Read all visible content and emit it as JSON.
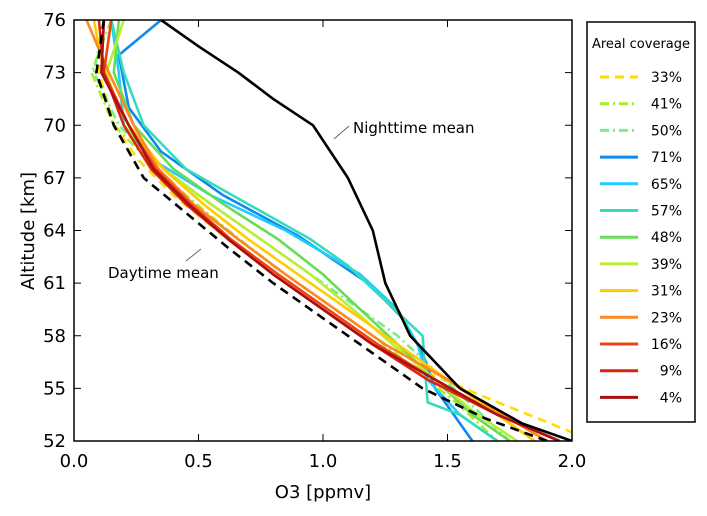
{
  "chart_data": {
    "type": "line",
    "title": "",
    "xlabel": "O3 [ppmv]",
    "ylabel": "Altitude [km]",
    "xlim": [
      0.0,
      2.0
    ],
    "ylim": [
      52,
      76
    ],
    "xticks": [
      "0.0",
      "0.5",
      "1.0",
      "1.5",
      "2.0"
    ],
    "yticks": [
      "52",
      "55",
      "58",
      "61",
      "64",
      "67",
      "70",
      "73",
      "76"
    ],
    "legend": {
      "title": "Areal coverage",
      "position": "right, outside"
    },
    "annotations": [
      {
        "text": "Nighttime mean",
        "points_to": {
          "x": 1.04,
          "y": 69.3
        }
      },
      {
        "text": "Daytime mean",
        "points_to": {
          "x": 0.57,
          "y": 64.8
        }
      }
    ],
    "series": [
      {
        "name": "33%",
        "color": "#ffdd00",
        "dash": "dashed",
        "x": [
          0.12,
          0.1,
          0.16,
          0.26,
          0.4,
          0.6,
          0.8,
          1.0,
          1.2,
          1.4,
          1.65,
          2.0
        ],
        "y": [
          76,
          73,
          70,
          68,
          66,
          63.7,
          61.5,
          59.5,
          57.5,
          56,
          54.5,
          52.5
        ]
      },
      {
        "name": "41%",
        "color": "#aaee22",
        "dash": "dashdot",
        "x": [
          0.15,
          0.07,
          0.16,
          0.3,
          0.45,
          0.62,
          0.8,
          1.0,
          1.2,
          1.38,
          1.55,
          1.7
        ],
        "y": [
          76,
          73,
          70,
          68,
          66,
          64,
          62,
          60,
          58,
          56,
          54,
          52
        ]
      },
      {
        "name": "50%",
        "color": "#77ee88",
        "dash": "dashdot",
        "x": [
          0.12,
          0.08,
          0.18,
          0.32,
          0.5,
          0.7,
          0.9,
          1.1,
          1.3,
          1.45,
          1.6,
          1.75
        ],
        "y": [
          76,
          73,
          70,
          68,
          66,
          64,
          62,
          60,
          58,
          56,
          54,
          52
        ]
      },
      {
        "name": "71%",
        "color": "#1188ee",
        "dash": "solid",
        "x": [
          0.35,
          0.18,
          0.22,
          0.35,
          0.6,
          0.9,
          1.18,
          1.32,
          1.4,
          1.45,
          1.6
        ],
        "y": [
          76,
          74,
          71,
          68.5,
          66,
          63.7,
          61,
          59,
          57,
          55,
          52
        ]
      },
      {
        "name": "65%",
        "color": "#22ccff",
        "dash": "solid",
        "x": [
          0.15,
          0.18,
          0.2,
          0.32,
          0.55,
          0.85,
          1.15,
          1.3,
          1.38,
          1.42,
          1.55,
          1.7
        ],
        "y": [
          76,
          73,
          70,
          68,
          66,
          64,
          61.5,
          59.5,
          57.5,
          55.5,
          53.5,
          52
        ]
      },
      {
        "name": "57%",
        "color": "#33ddbb",
        "dash": "solid",
        "x": [
          0.15,
          0.2,
          0.28,
          0.45,
          0.7,
          0.95,
          1.1,
          1.25,
          1.4,
          1.42,
          1.55,
          1.7
        ],
        "y": [
          76,
          73,
          70,
          67.5,
          65.5,
          63.5,
          62,
          60,
          58,
          54.2,
          53.5,
          52
        ]
      },
      {
        "name": "48%",
        "color": "#66dd55",
        "dash": "solid",
        "x": [
          0.18,
          0.16,
          0.24,
          0.4,
          0.6,
          0.82,
          1.0,
          1.15,
          1.3,
          1.45,
          1.6,
          1.75
        ],
        "y": [
          76,
          73,
          70,
          67.5,
          65.5,
          63.5,
          61.5,
          59.5,
          57.5,
          55.5,
          53.5,
          52
        ]
      },
      {
        "name": "39%",
        "color": "#bbee33",
        "dash": "solid",
        "x": [
          0.2,
          0.13,
          0.2,
          0.36,
          0.55,
          0.75,
          0.95,
          1.12,
          1.28,
          1.45,
          1.62,
          1.78
        ],
        "y": [
          76,
          73,
          70,
          67.5,
          65.5,
          63.5,
          61.5,
          59.5,
          57.5,
          55.5,
          53.5,
          52
        ]
      },
      {
        "name": "31%",
        "color": "#ffcc00",
        "dash": "solid",
        "x": [
          0.08,
          0.12,
          0.22,
          0.36,
          0.52,
          0.7,
          0.9,
          1.1,
          1.3,
          1.5,
          1.7,
          1.85
        ],
        "y": [
          76,
          73,
          70,
          67.5,
          65.5,
          63.5,
          61.5,
          59.5,
          57.5,
          55.5,
          53.5,
          52
        ]
      },
      {
        "name": "23%",
        "color": "#ff8822",
        "dash": "solid",
        "x": [
          0.05,
          0.14,
          0.24,
          0.34,
          0.48,
          0.66,
          0.85,
          1.05,
          1.25,
          1.5,
          1.72,
          1.9
        ],
        "y": [
          76,
          73,
          70,
          67.5,
          65.5,
          63.5,
          61.5,
          59.5,
          57.5,
          55.5,
          53.5,
          52
        ]
      },
      {
        "name": "16%",
        "color": "#ee4411",
        "dash": "solid",
        "x": [
          0.15,
          0.12,
          0.22,
          0.33,
          0.47,
          0.63,
          0.82,
          1.02,
          1.22,
          1.45,
          1.7,
          1.95
        ],
        "y": [
          76,
          73,
          70,
          67.5,
          65.5,
          63.5,
          61.5,
          59.5,
          57.5,
          55.5,
          53.5,
          52
        ]
      },
      {
        "name": "9%",
        "color": "#dd2211",
        "dash": "solid",
        "x": [
          0.1,
          0.12,
          0.2,
          0.31,
          0.45,
          0.62,
          0.8,
          1.0,
          1.2,
          1.42,
          1.7,
          1.95
        ],
        "y": [
          76,
          73,
          70,
          67.5,
          65.5,
          63.5,
          61.5,
          59.5,
          57.5,
          55.5,
          53.5,
          52
        ]
      },
      {
        "name": "4%",
        "color": "#aa1111",
        "dash": "solid",
        "x": [
          0.12,
          0.11,
          0.22,
          0.32,
          0.46,
          0.62,
          0.8,
          1.0,
          1.2,
          1.45,
          1.7,
          1.95
        ],
        "y": [
          76,
          73,
          70,
          67.5,
          65.5,
          63.5,
          61.5,
          59.5,
          57.5,
          55.5,
          53.5,
          52
        ]
      },
      {
        "name": "",
        "color": "#000000",
        "dash": "dashed",
        "x": [
          0.12,
          0.09,
          0.16,
          0.28,
          0.45,
          0.62,
          0.8,
          1.0,
          1.2,
          1.4,
          1.65,
          1.9
        ],
        "y": [
          76,
          73,
          70,
          67,
          65,
          63,
          61,
          59,
          57,
          55,
          53.3,
          52
        ]
      },
      {
        "name": "",
        "color": "#000000",
        "dash": "solid",
        "x": [
          0.35,
          0.5,
          0.66,
          0.8,
          0.96,
          1.1,
          1.2,
          1.25,
          1.35,
          1.55,
          1.8,
          2.0
        ],
        "y": [
          76,
          74.5,
          73,
          71.5,
          70,
          67,
          64,
          61,
          58,
          55,
          53,
          52
        ]
      }
    ]
  }
}
